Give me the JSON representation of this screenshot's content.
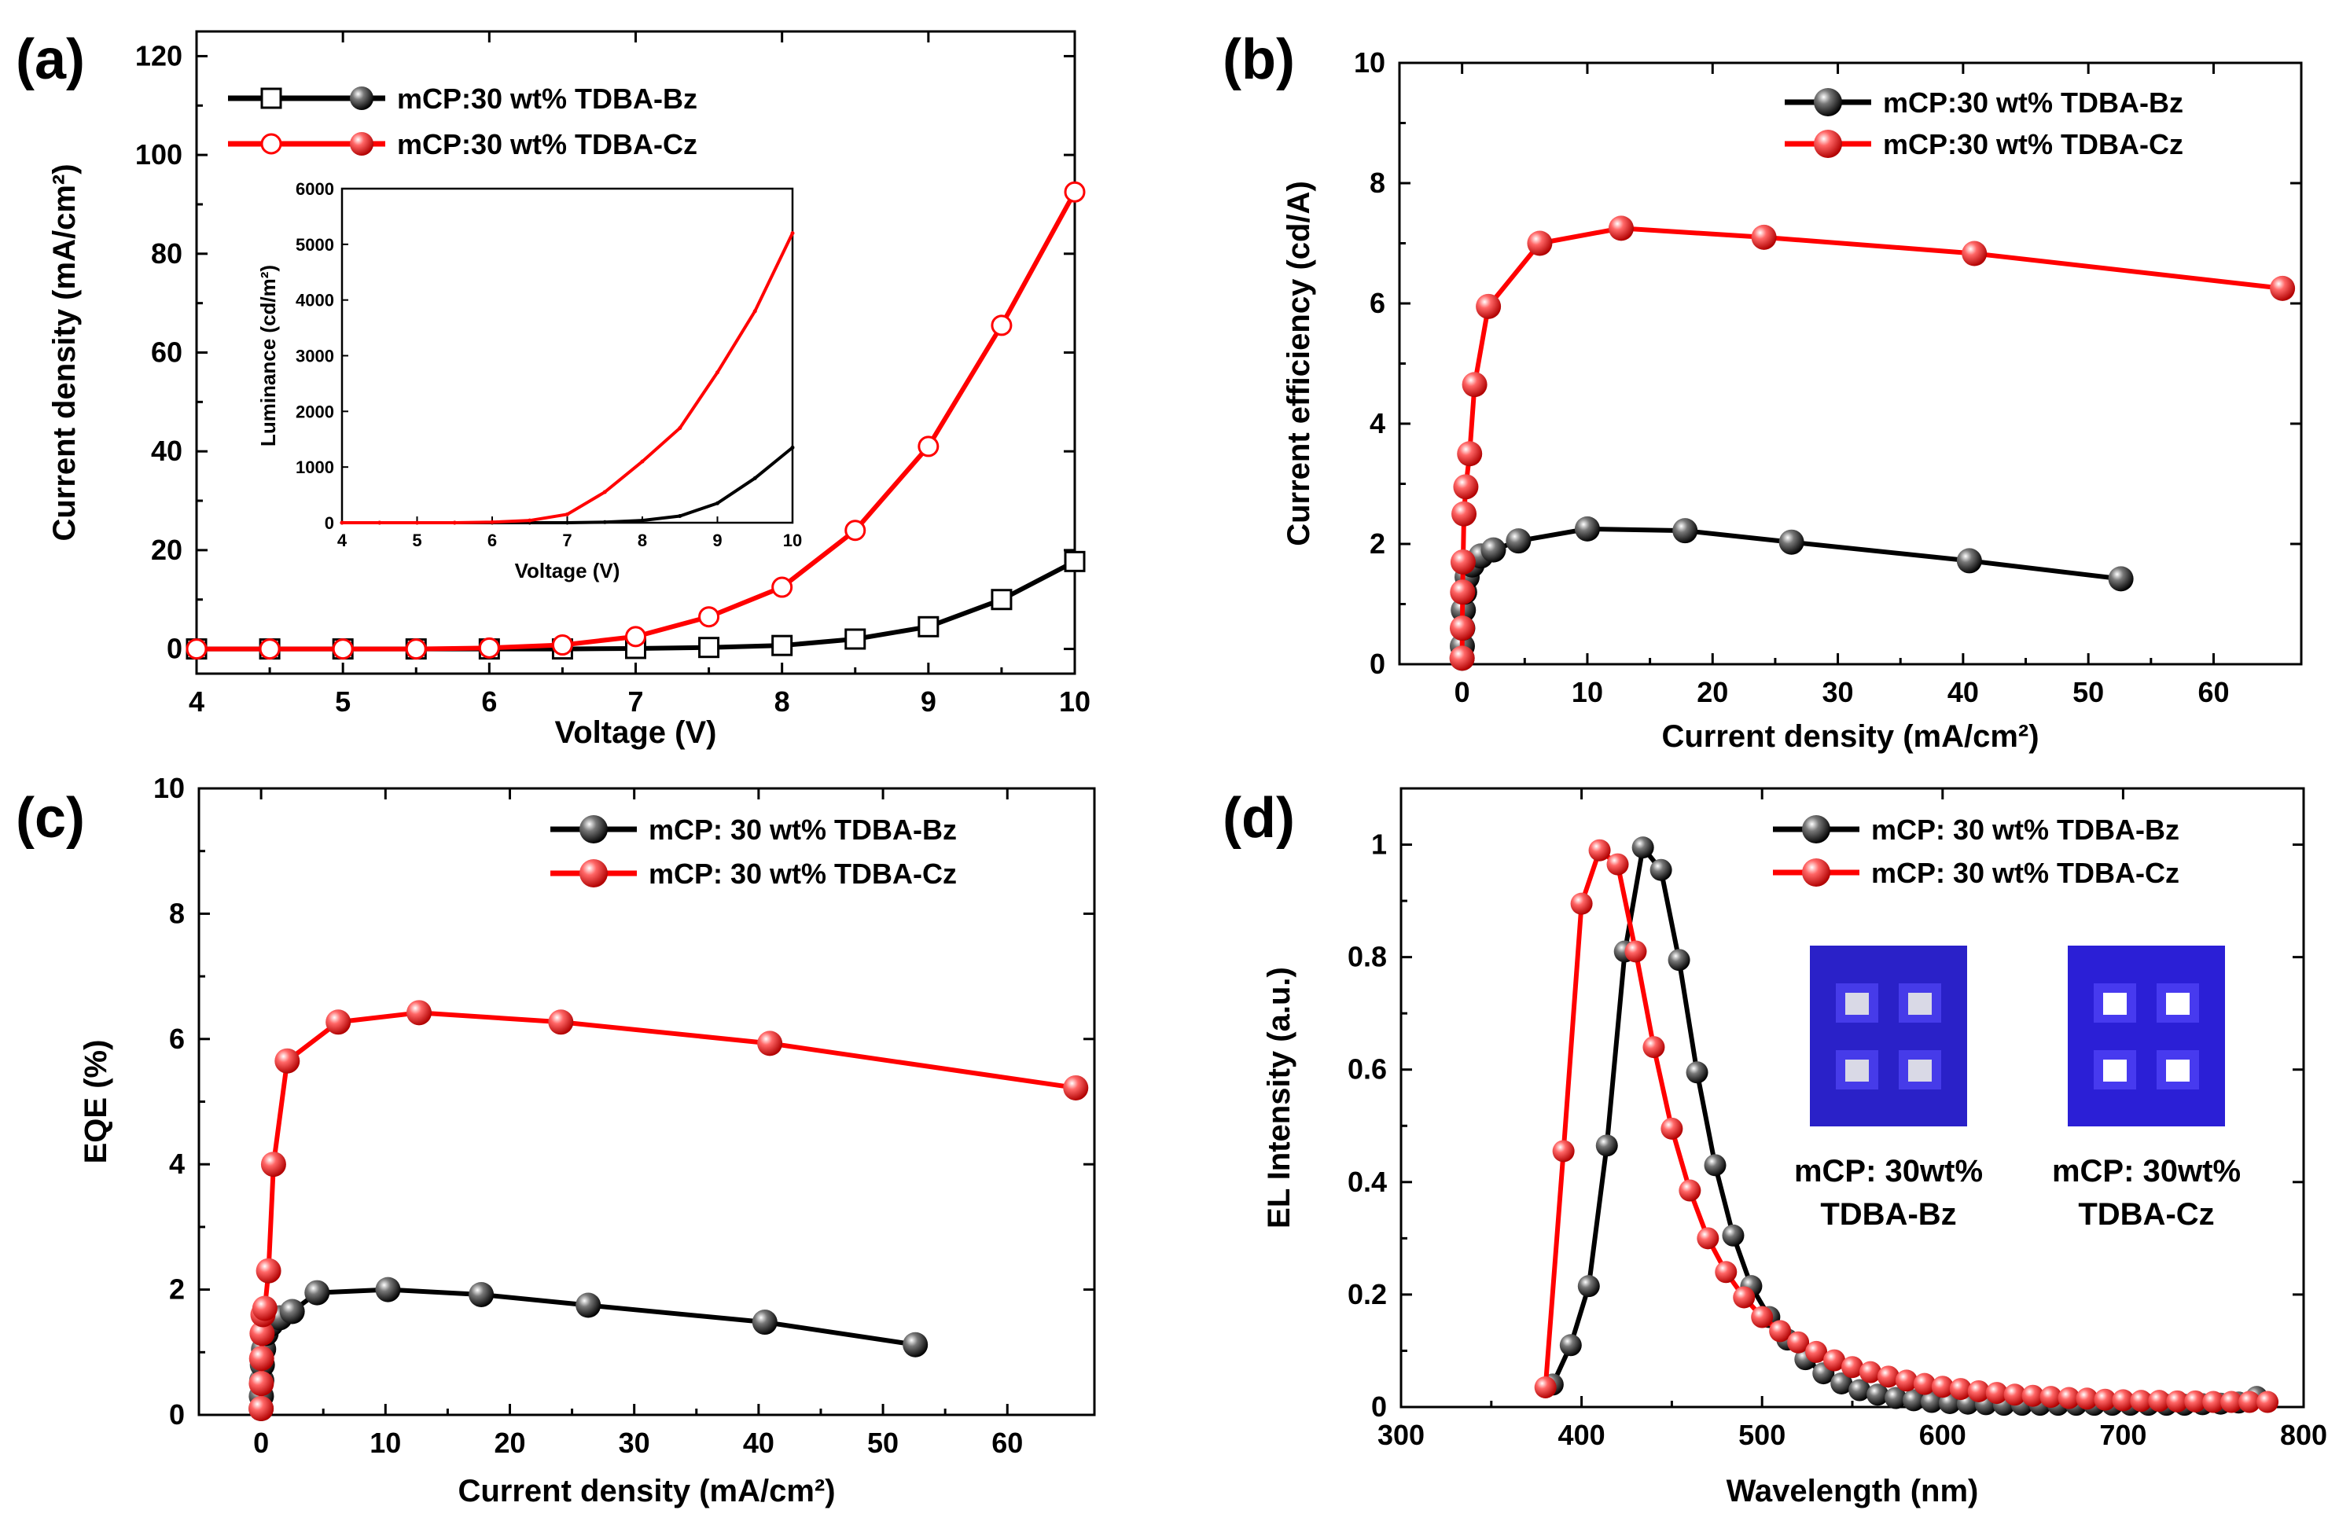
{
  "chart_data": [
    {
      "type": "line",
      "panel_label": "(a)",
      "xlabel": "Voltage (V)",
      "ylabel": "Current density (mA/cm²)",
      "xlim": [
        4,
        10
      ],
      "ylim": [
        -5,
        125
      ],
      "xticks": [
        4,
        5,
        6,
        7,
        8,
        9,
        10
      ],
      "yticks": [
        0,
        20,
        40,
        60,
        80,
        100,
        120
      ],
      "legend_position": "top-left",
      "series": [
        {
          "name": "mCP:30 wt%  TDBA-Bz",
          "color": "#000000",
          "marker": "square-open",
          "x": [
            4.0,
            4.5,
            5.0,
            5.5,
            6.0,
            6.5,
            7.0,
            7.5,
            8.0,
            8.5,
            9.0,
            9.5,
            10.0
          ],
          "y": [
            0,
            0,
            0,
            0,
            0,
            0,
            0.1,
            0.3,
            0.7,
            2.0,
            4.5,
            10.0,
            17.7
          ]
        },
        {
          "name": "mCP:30 wt%  TDBA-Cz",
          "color": "#ff0000",
          "marker": "circle-open",
          "x": [
            4.0,
            4.5,
            5.0,
            5.5,
            6.0,
            6.5,
            7.0,
            7.5,
            8.0,
            8.5,
            9.0,
            9.5,
            10.0
          ],
          "y": [
            0,
            0,
            0,
            0,
            0.2,
            0.8,
            2.5,
            6.5,
            12.5,
            24.0,
            41.0,
            65.5,
            92.5
          ]
        }
      ],
      "inset": {
        "xlabel": "Voltage (V)",
        "ylabel": "Luminance (cd/m²)",
        "xlim": [
          4,
          10
        ],
        "ylim": [
          0,
          6000
        ],
        "xticks": [
          4,
          5,
          6,
          7,
          8,
          9,
          10
        ],
        "yticks": [
          0,
          1000,
          2000,
          3000,
          4000,
          5000,
          6000
        ],
        "series": [
          {
            "name": "TDBA-Bz",
            "color": "#000000",
            "x": [
              4,
              4.5,
              5,
              5.5,
              6,
              6.5,
              7,
              7.5,
              8,
              8.5,
              9,
              9.5,
              10
            ],
            "y": [
              0,
              0,
              0,
              0,
              0,
              0,
              0,
              10,
              40,
              120,
              350,
              800,
              1350
            ]
          },
          {
            "name": "TDBA-Cz",
            "color": "#ff0000",
            "x": [
              4,
              4.5,
              5,
              5.5,
              6,
              6.5,
              7,
              7.5,
              8,
              8.5,
              9,
              9.5,
              10
            ],
            "y": [
              0,
              0,
              0,
              0,
              10,
              40,
              150,
              550,
              1100,
              1700,
              2700,
              3800,
              5200
            ]
          }
        ]
      }
    },
    {
      "type": "line",
      "panel_label": "(b)",
      "xlabel": "Current density (mA/cm²)",
      "ylabel": "Current efficiency (cd/A)",
      "xlim": [
        -5,
        67
      ],
      "ylim": [
        0,
        10
      ],
      "xticks": [
        0,
        10,
        20,
        30,
        40,
        50,
        60
      ],
      "yticks": [
        0,
        2,
        4,
        6,
        8,
        10
      ],
      "legend_position": "top-right",
      "series": [
        {
          "name": "mCP:30 wt%  TDBA-Bz",
          "color": "#000000",
          "marker": "sphere",
          "x": [
            0.0,
            0.02,
            0.05,
            0.1,
            0.2,
            0.4,
            0.8,
            1.5,
            2.5,
            4.5,
            10.0,
            17.8,
            26.3,
            40.5,
            52.6
          ],
          "y": [
            0.1,
            0.3,
            0.6,
            0.9,
            1.2,
            1.45,
            1.65,
            1.8,
            1.9,
            2.05,
            2.25,
            2.22,
            2.03,
            1.72,
            1.42
          ]
        },
        {
          "name": "mCP:30 wt%  TDBA-Cz",
          "color": "#ff0000",
          "marker": "sphere",
          "x": [
            0.0,
            0.02,
            0.04,
            0.08,
            0.15,
            0.3,
            0.6,
            1.0,
            2.1,
            6.2,
            12.7,
            24.1,
            40.9,
            65.5
          ],
          "y": [
            0.1,
            0.6,
            1.2,
            1.7,
            2.5,
            2.95,
            3.5,
            4.65,
            5.95,
            7.0,
            7.25,
            7.1,
            6.83,
            6.25
          ]
        }
      ]
    },
    {
      "type": "line",
      "panel_label": "(c)",
      "xlabel": "Current density (mA/cm²)",
      "ylabel": "EQE (%)",
      "xlim": [
        -5,
        67
      ],
      "ylim": [
        0,
        10
      ],
      "xticks": [
        0,
        10,
        20,
        30,
        40,
        50,
        60
      ],
      "yticks": [
        0,
        2,
        4,
        6,
        8,
        10
      ],
      "legend_position": "top-right",
      "series": [
        {
          "name": "mCP: 30 wt%  TDBA-Bz",
          "color": "#000000",
          "marker": "sphere",
          "x": [
            0.0,
            0.02,
            0.05,
            0.1,
            0.2,
            0.4,
            0.8,
            1.5,
            2.5,
            4.5,
            10.2,
            17.7,
            26.3,
            40.5,
            52.6
          ],
          "y": [
            0.1,
            0.3,
            0.55,
            0.8,
            1.05,
            1.3,
            1.45,
            1.55,
            1.65,
            1.95,
            2.0,
            1.92,
            1.75,
            1.48,
            1.12
          ]
        },
        {
          "name": "mCP: 30 wt%  TDBA-Cz",
          "color": "#ff0000",
          "marker": "sphere",
          "x": [
            0.0,
            0.02,
            0.04,
            0.08,
            0.15,
            0.3,
            0.6,
            1.0,
            2.1,
            6.2,
            12.7,
            24.1,
            40.9,
            65.5
          ],
          "y": [
            0.1,
            0.5,
            0.9,
            1.3,
            1.6,
            1.7,
            2.3,
            4.0,
            5.65,
            6.27,
            6.42,
            6.27,
            5.93,
            5.22
          ]
        }
      ]
    },
    {
      "type": "line",
      "panel_label": "(d)",
      "xlabel": "Wavelength (nm)",
      "ylabel": "EL Intensity (a.u.)",
      "xlim": [
        300,
        800
      ],
      "ylim": [
        0,
        1.1
      ],
      "xticks": [
        300,
        400,
        500,
        600,
        700,
        800
      ],
      "yticks": [
        0.0,
        0.2,
        0.4,
        0.6,
        0.8,
        1.0
      ],
      "legend_position": "top-right",
      "series": [
        {
          "name": "mCP: 30 wt%  TDBA-Bz",
          "color": "#000000",
          "marker": "sphere",
          "peak_nm": 434,
          "x": [
            384,
            394,
            404,
            414,
            424,
            434,
            444,
            454,
            464,
            474,
            484,
            494,
            504,
            514,
            524,
            534,
            544,
            554,
            564,
            574,
            584,
            594,
            604,
            614,
            624,
            634,
            644,
            654,
            664,
            674,
            684,
            694,
            704,
            714,
            724,
            734,
            744,
            754,
            764,
            774
          ],
          "y": [
            0.04,
            0.11,
            0.215,
            0.465,
            0.81,
            0.995,
            0.955,
            0.795,
            0.595,
            0.43,
            0.305,
            0.215,
            0.16,
            0.12,
            0.085,
            0.06,
            0.042,
            0.03,
            0.022,
            0.016,
            0.012,
            0.009,
            0.007,
            0.006,
            0.005,
            0.004,
            0.004,
            0.004,
            0.004,
            0.004,
            0.004,
            0.004,
            0.004,
            0.004,
            0.004,
            0.004,
            0.005,
            0.006,
            0.008,
            0.018
          ]
        },
        {
          "name": "mCP: 30 wt%  TDBA-Cz",
          "color": "#ff0000",
          "marker": "sphere",
          "peak_nm": 410,
          "x": [
            380,
            390,
            400,
            410,
            420,
            430,
            440,
            450,
            460,
            470,
            480,
            490,
            500,
            510,
            520,
            530,
            540,
            550,
            560,
            570,
            580,
            590,
            600,
            610,
            620,
            630,
            640,
            650,
            660,
            670,
            680,
            690,
            700,
            710,
            720,
            730,
            740,
            750,
            760,
            770,
            780
          ],
          "y": [
            0.035,
            0.455,
            0.895,
            0.99,
            0.965,
            0.81,
            0.64,
            0.495,
            0.385,
            0.3,
            0.24,
            0.195,
            0.16,
            0.135,
            0.115,
            0.098,
            0.083,
            0.071,
            0.062,
            0.054,
            0.047,
            0.041,
            0.036,
            0.032,
            0.028,
            0.025,
            0.022,
            0.02,
            0.018,
            0.016,
            0.015,
            0.013,
            0.012,
            0.011,
            0.011,
            0.01,
            0.01,
            0.009,
            0.009,
            0.009,
            0.009
          ]
        }
      ],
      "photos": [
        {
          "caption_line1": "mCP: 30wt%",
          "caption_line2": "TDBA-Bz",
          "color": "#2a21c8"
        },
        {
          "caption_line1": "mCP: 30wt%",
          "caption_line2": "TDBA-Cz",
          "color": "#2b1fd6"
        }
      ]
    }
  ]
}
